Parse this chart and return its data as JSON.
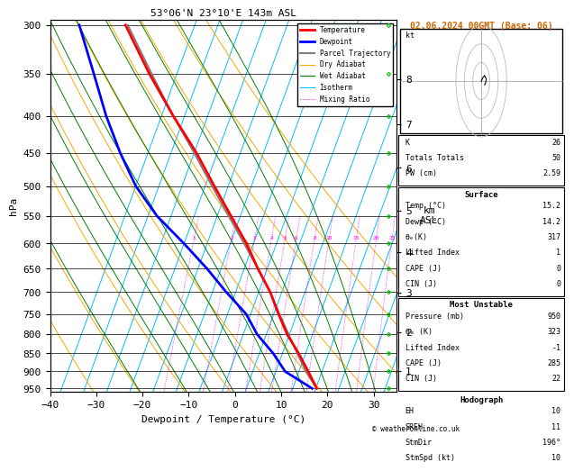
{
  "title": "53°06'N 23°10'E 143m ASL",
  "date_str": "02.06.2024 00GMT (Base: 06)",
  "xlabel": "Dewpoint / Temperature (°C)",
  "ylabel_left": "hPa",
  "pressure_ticks": [
    300,
    350,
    400,
    450,
    500,
    550,
    600,
    650,
    700,
    750,
    800,
    850,
    900,
    950
  ],
  "temp_xlim": [
    -40,
    35
  ],
  "temp_xticks": [
    -40,
    -30,
    -20,
    -10,
    0,
    10,
    20,
    30
  ],
  "pmin": 295,
  "pmax": 960,
  "skew_factor": 25,
  "p_ref": 1050,
  "temp_profile_pressure": [
    950,
    900,
    850,
    800,
    750,
    700,
    650,
    600,
    550,
    500,
    450,
    400,
    350,
    300
  ],
  "temp_profile_temp": [
    15.2,
    12.0,
    8.5,
    4.5,
    1.0,
    -2.5,
    -7.0,
    -11.5,
    -17.0,
    -23.0,
    -29.5,
    -37.5,
    -46.0,
    -55.0
  ],
  "dewp_profile_pressure": [
    950,
    900,
    850,
    800,
    750,
    700,
    650,
    600,
    550,
    500,
    450,
    400,
    350,
    300
  ],
  "dewp_profile_temp": [
    14.2,
    7.0,
    3.0,
    -2.0,
    -6.0,
    -12.0,
    -18.0,
    -25.0,
    -33.0,
    -40.0,
    -46.0,
    -52.0,
    -58.0,
    -65.0
  ],
  "parcel_pressure": [
    950,
    900,
    850,
    800,
    750,
    700,
    650,
    600,
    550,
    500,
    450,
    400,
    350,
    300
  ],
  "parcel_temp": [
    15.2,
    11.5,
    8.2,
    4.8,
    1.2,
    -2.5,
    -7.0,
    -12.0,
    -17.5,
    -23.5,
    -30.0,
    -37.5,
    -45.5,
    -54.5
  ],
  "color_temp": "#FF0000",
  "color_dewp": "#0000FF",
  "color_parcel": "#808080",
  "color_dry_adiabat": "#FFA500",
  "color_wet_adiabat": "#008000",
  "color_isotherm": "#00BFFF",
  "color_mixing": "#FF00FF",
  "isotherm_temps": [
    -40,
    -35,
    -30,
    -25,
    -20,
    -15,
    -10,
    -5,
    0,
    5,
    10,
    15,
    20,
    25,
    30,
    35
  ],
  "dry_adiabat_thetas": [
    -30,
    -20,
    -10,
    0,
    10,
    20,
    30,
    40,
    50,
    60
  ],
  "wet_adiabat_surfs": [
    -20,
    -10,
    -5,
    0,
    5,
    10,
    15,
    20,
    25,
    30
  ],
  "mixing_ratio_values": [
    1,
    2,
    3,
    4,
    5,
    6,
    8,
    10,
    15,
    20,
    25
  ],
  "mixing_ratio_label_p": 590,
  "surface_temp": 15.2,
  "surface_dewp": 14.2,
  "surface_theta_e": 317,
  "surface_lifted_index": 1,
  "surface_cape": 0,
  "surface_cin": 0,
  "mu_pressure": 950,
  "mu_theta_e": 323,
  "mu_lifted_index": -1,
  "mu_cape": 285,
  "mu_cin": 22,
  "K_index": 26,
  "totals_totals": 50,
  "PW_cm": 2.59,
  "hodo_EH": 10,
  "hodo_SREH": 11,
  "hodo_StmDir": 196,
  "hodo_StmSpd": 10,
  "lcl_pressure": 950,
  "background_color": "#FFFFFF",
  "chart_font_size": 8,
  "legend_items": [
    {
      "label": "Temperature",
      "color": "#FF0000",
      "lw": 2.0,
      "ls": "-"
    },
    {
      "label": "Dewpoint",
      "color": "#0000FF",
      "lw": 2.0,
      "ls": "-"
    },
    {
      "label": "Parcel Trajectory",
      "color": "#808080",
      "lw": 1.5,
      "ls": "-"
    },
    {
      "label": "Dry Adiabat",
      "color": "#FFA500",
      "lw": 0.8,
      "ls": "-"
    },
    {
      "label": "Wet Adiabat",
      "color": "#008000",
      "lw": 0.8,
      "ls": "-"
    },
    {
      "label": "Isotherm",
      "color": "#00BFFF",
      "lw": 0.8,
      "ls": "-"
    },
    {
      "label": "Mixing Ratio",
      "color": "#FF00FF",
      "lw": 0.8,
      "ls": ":"
    }
  ],
  "km_integers": [
    1,
    2,
    3,
    4,
    5,
    6,
    7,
    8
  ],
  "wind_barb_pressures": [
    950,
    900,
    850,
    800,
    750,
    700,
    650,
    600,
    550,
    500,
    450,
    400,
    350,
    300
  ],
  "wind_u": [
    1,
    2,
    3,
    4,
    5,
    6,
    6,
    7,
    7,
    8,
    8,
    9,
    9,
    10
  ],
  "wind_v": [
    2,
    3,
    5,
    6,
    7,
    7,
    6,
    5,
    4,
    3,
    2,
    1,
    0,
    -1
  ]
}
